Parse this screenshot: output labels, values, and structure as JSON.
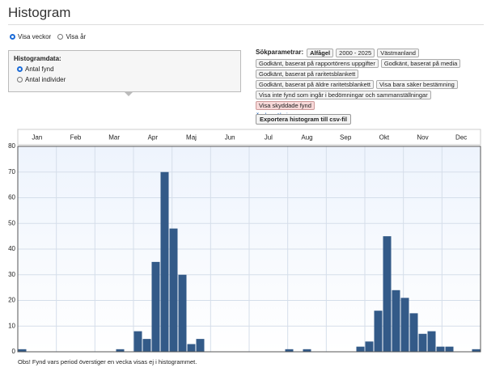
{
  "header": {
    "title": "Histogram"
  },
  "view_options": [
    "Visa veckor",
    "Visa år"
  ],
  "panel": {
    "title": "Histogramdata:",
    "options": [
      "Antal fynd",
      "Antal individer"
    ]
  },
  "search_params": {
    "label": "Sökparametrar:",
    "rows": [
      [
        "Alfågel",
        "2000 - 2025",
        "Västmanland"
      ],
      [
        "Godkänt, baserat på rapportörens uppgifter",
        "Godkänt, baserat på media"
      ],
      [
        "Godkänt, baserat på raritetsblankett"
      ],
      [
        "Godkänt, baserat på äldre raritetsblankett",
        "Visa bara säker bestämning"
      ],
      [
        "Visa inte fynd som ingår i bedömningar och sammanställningar"
      ],
      [
        "Visa skyddade fynd"
      ]
    ],
    "link": "Ändra sökningen"
  },
  "export_button": "Exportera histogram till csv-fil",
  "chart_data": {
    "type": "histogram",
    "x_labels": [
      "Jan",
      "Feb",
      "Mar",
      "Apr",
      "Maj",
      "Jun",
      "Jul",
      "Aug",
      "Sep",
      "Okt",
      "Nov",
      "Dec"
    ],
    "bins": [
      1,
      2,
      3,
      4,
      5,
      6,
      7,
      8,
      9,
      10,
      11,
      12,
      13,
      14,
      15,
      16,
      17,
      18,
      19,
      20,
      21,
      22,
      23,
      24,
      25,
      26,
      27,
      28,
      29,
      30,
      31,
      32,
      33,
      34,
      35,
      36,
      37,
      38,
      39,
      40,
      41,
      42,
      43,
      44,
      45,
      46,
      47,
      48,
      49,
      50,
      51,
      52,
      53
    ],
    "values": [
      1,
      0,
      0,
      0,
      0,
      0,
      0,
      0,
      0,
      0,
      0,
      1,
      0,
      8,
      5,
      35,
      70,
      48,
      30,
      3,
      5,
      0,
      0,
      0,
      0,
      0,
      0,
      0,
      0,
      0,
      1,
      0,
      1,
      0,
      0,
      0,
      0,
      0,
      2,
      4,
      16,
      45,
      24,
      21,
      15,
      7,
      8,
      2,
      2,
      0,
      0,
      1
    ],
    "color": "#335a88",
    "xlim": [
      1,
      53
    ],
    "ylim": [
      0,
      80
    ],
    "yticks": [
      0,
      10,
      20,
      30,
      40,
      50,
      60,
      70,
      80
    ],
    "grid": true
  },
  "footnote": "Obs! Fynd vars period överstiger en vecka visas ej i histogrammet."
}
